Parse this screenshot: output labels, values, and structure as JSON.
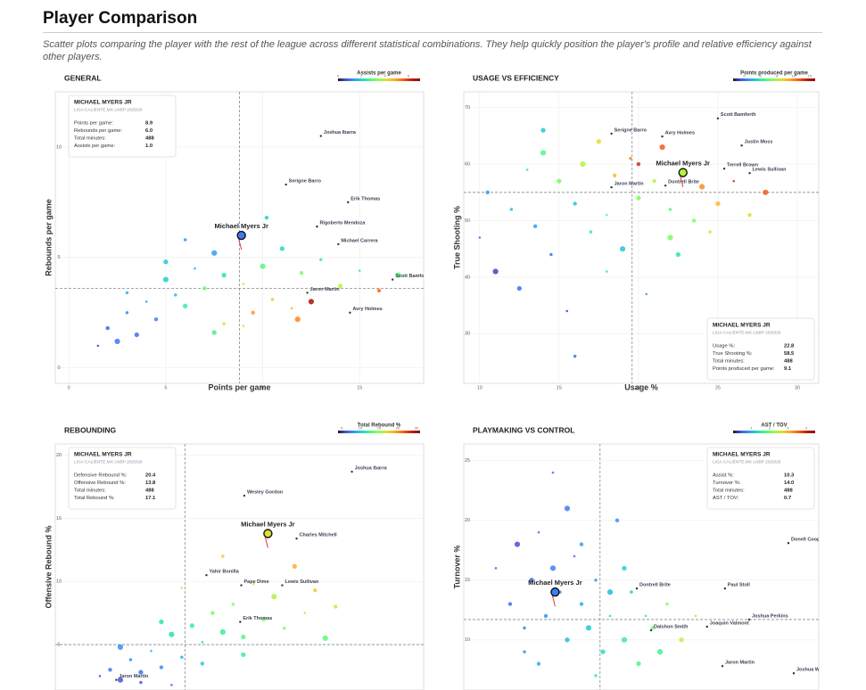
{
  "header": {
    "title": "Player Comparison",
    "subtitle": "Scatter plots comparing the player with the rest of the league across different statistical combinations. They help quickly position the player's profile and relative efficiency against other players."
  },
  "chart_data": [
    {
      "type": "scatter",
      "title": "GENERAL",
      "x_label": "Points per game",
      "y_label": "Rebounds per game",
      "xlim": [
        -0.7,
        18.3
      ],
      "ylim": [
        -0.7,
        12.5
      ],
      "xticks": [
        0,
        5,
        10,
        15
      ],
      "yticks": [
        0,
        5,
        10
      ],
      "grid": true,
      "x_median": 8.8,
      "y_median": 3.6,
      "colorbar": {
        "title": "Assists per game",
        "lim": [
          0,
          7
        ],
        "ticks": [
          0,
          2,
          4,
          6
        ]
      },
      "points": {
        "x": [
          1.5,
          2,
          2.5,
          3,
          3.5,
          4,
          4.5,
          5,
          5.5,
          6,
          6.5,
          7,
          7.5,
          8,
          8,
          9,
          9.5,
          10,
          10.5,
          11,
          11.5,
          12,
          12.5,
          13,
          14,
          15,
          16,
          17,
          6,
          7.5,
          9,
          10.2,
          11.8,
          3,
          5
        ],
        "y": [
          1.0,
          1.8,
          1.2,
          2.5,
          1.5,
          3.0,
          2.2,
          4.0,
          3.3,
          2.8,
          4.5,
          3.6,
          5.2,
          2.0,
          4.2,
          3.8,
          2.5,
          4.6,
          3.1,
          5.4,
          2.7,
          4.3,
          3.0,
          4.9,
          3.7,
          4.4,
          3.5,
          4.2,
          5.8,
          1.6,
          1.9,
          6.8,
          2.2,
          3.4,
          4.8
        ],
        "c": [
          0.5,
          0.8,
          1,
          1.2,
          0.9,
          1.5,
          1.1,
          2,
          1.8,
          2.5,
          1.6,
          3,
          1.4,
          4,
          2.2,
          3.5,
          5,
          2.8,
          4.5,
          2.1,
          4.8,
          3.2,
          6.5,
          2.5,
          3.8,
          2.4,
          5.5,
          3,
          1.3,
          2.6,
          4.2,
          2,
          5.2,
          1.7,
          1.9
        ]
      },
      "labeled": [
        {
          "name": "Joshua Ibarra",
          "x": 13.0,
          "y": 10.5
        },
        {
          "name": "Serigne Barro",
          "x": 11.2,
          "y": 8.3
        },
        {
          "name": "Erik Thomas",
          "x": 14.4,
          "y": 7.5
        },
        {
          "name": "Rigoberto Mendoza",
          "x": 12.8,
          "y": 6.4
        },
        {
          "name": "Michael Carrera",
          "x": 13.9,
          "y": 5.6
        },
        {
          "name": "Scott Bamfor",
          "x": 16.7,
          "y": 4.0
        },
        {
          "name": "Jaron Martin",
          "x": 12.3,
          "y": 3.4
        },
        {
          "name": "Avry Holmes",
          "x": 14.5,
          "y": 2.5
        }
      ],
      "player": {
        "name": "Michael Myers Jr",
        "x": 8.9,
        "y": 6.0,
        "c": 1.0
      },
      "info": {
        "corner": "top-left",
        "heading": "MICHAEL MYERS JR",
        "league": "LIGA CALIENTE.MX LNBP 2025/26",
        "rows": [
          [
            "Points per game:",
            "8.9"
          ],
          [
            "Rebounds per game:",
            "6.0"
          ],
          [
            "Total minutes:",
            "488"
          ],
          [
            "Assists per game:",
            "1.0"
          ]
        ]
      }
    },
    {
      "type": "scatter",
      "title": "USAGE VS EFFICIENCY",
      "x_label": "Usage %",
      "y_label": "True Shooting %",
      "xlim": [
        9.0,
        31.35
      ],
      "ylim": [
        21.2,
        72.8
      ],
      "xticks": [
        10,
        15,
        20,
        25,
        30
      ],
      "yticks": [
        30,
        40,
        50,
        60,
        70
      ],
      "grid": true,
      "x_median": 19.6,
      "y_median": 55,
      "colorbar": {
        "title": "Points produced per game",
        "lim": [
          1,
          16
        ],
        "ticks": [
          3,
          6,
          9,
          12,
          15
        ]
      },
      "points": {
        "x": [
          10,
          10.5,
          11,
          12,
          12.5,
          13,
          13.5,
          14,
          14.5,
          15,
          15.5,
          16,
          16.5,
          17,
          17.5,
          18,
          18.5,
          19,
          19.5,
          20,
          20.5,
          21,
          21.5,
          22,
          22.5,
          23,
          23.5,
          24,
          24.5,
          25,
          26,
          27,
          28,
          16,
          14,
          18,
          20,
          22
        ],
        "y": [
          47,
          55,
          41,
          52,
          38,
          59,
          49,
          62,
          44,
          57,
          34,
          53,
          60,
          48,
          64,
          51,
          58,
          45,
          61,
          54,
          37,
          57,
          63,
          52,
          44,
          59,
          50,
          56,
          48,
          53,
          57,
          51,
          55,
          26,
          66,
          41,
          60,
          47
        ],
        "c": [
          3,
          4,
          2,
          5,
          3,
          6,
          4,
          7,
          3,
          8,
          2,
          5,
          9,
          6,
          10,
          7,
          11,
          5,
          12,
          8,
          4,
          9,
          13,
          7,
          6,
          10,
          8,
          12,
          9,
          11,
          14,
          10,
          13,
          3,
          5,
          6,
          14,
          8
        ]
      },
      "labeled": [
        {
          "name": "Scott Bamforth",
          "x": 25.0,
          "y": 68.1
        },
        {
          "name": "Serigne Barro",
          "x": 18.3,
          "y": 65.4
        },
        {
          "name": "Avry Holmes",
          "x": 21.5,
          "y": 64.9
        },
        {
          "name": "Justin Moss",
          "x": 26.5,
          "y": 63.3
        },
        {
          "name": "Terrell Brown",
          "x": 25.4,
          "y": 59.2
        },
        {
          "name": "Lewis Sullivan",
          "x": 27.0,
          "y": 58.4
        },
        {
          "name": "Dontrell Brite",
          "x": 21.7,
          "y": 56.2
        },
        {
          "name": "Jaron Martin",
          "x": 18.3,
          "y": 55.9
        }
      ],
      "player": {
        "name": "Michael Myers Jr",
        "x": 22.8,
        "y": 58.5,
        "c": 9.1
      },
      "info": {
        "corner": "bottom-right",
        "heading": "MICHAEL MYERS JR",
        "league": "LIGA CALIENTE.MX LNBP 2025/26",
        "rows": [
          [
            "Usage %:",
            "22.8"
          ],
          [
            "True Shooting %:",
            "58.5"
          ],
          [
            "Total minutes:",
            "488"
          ],
          [
            "Points produced per game:",
            "9.1"
          ]
        ]
      }
    },
    {
      "type": "scatter",
      "title": "REBOUNDING",
      "y_label": "Offensive Rebound %",
      "xlim": [
        -0.35,
        35.6
      ],
      "ylim": [
        1.4,
        20.9
      ],
      "yticks": [
        5,
        10,
        15,
        20
      ],
      "grid": true,
      "x_median": 12.3,
      "y_median": 5.0,
      "colorbar": {
        "title": "Total Rebound %",
        "lim": [
          4,
          26
        ],
        "ticks": [
          5,
          10,
          15,
          20,
          25
        ]
      },
      "points": {
        "x": [
          4,
          5,
          6,
          7,
          8,
          9,
          10,
          11,
          12,
          13,
          14,
          15,
          16,
          17,
          18,
          19,
          20,
          21,
          22,
          23,
          24,
          25,
          26,
          8,
          10,
          12,
          14,
          6,
          16,
          18,
          11,
          27
        ],
        "y": [
          2.5,
          3.0,
          2.2,
          3.8,
          2.8,
          4.5,
          3.2,
          5.8,
          4.0,
          6.5,
          5.2,
          7.5,
          6.0,
          8.2,
          5.6,
          9.8,
          7.0,
          8.8,
          6.3,
          11.2,
          7.5,
          9.3,
          5.5,
          2.0,
          6.8,
          9.5,
          3.5,
          4.8,
          12.0,
          4.2,
          1.8,
          8.0
        ],
        "c": [
          6,
          7,
          6,
          8,
          7,
          9,
          8,
          11,
          9,
          12,
          11,
          14,
          12,
          15,
          13,
          17,
          14,
          16,
          14,
          19,
          15,
          18,
          13,
          6,
          11,
          15,
          10,
          8,
          18,
          12,
          7,
          16
        ]
      },
      "labeled": [
        {
          "name": "Joshua Ibarra",
          "x": 28.6,
          "y": 18.7
        },
        {
          "name": "Wesley Gordon",
          "x": 18.1,
          "y": 16.8
        },
        {
          "name": "Charles Mitchell",
          "x": 23.2,
          "y": 13.4
        },
        {
          "name": "Yahir Bonilla",
          "x": 14.4,
          "y": 10.5
        },
        {
          "name": "Pape Dime",
          "x": 17.8,
          "y": 9.7
        },
        {
          "name": "Lewis Sullivan",
          "x": 21.8,
          "y": 9.7
        },
        {
          "name": "Erik Thomas",
          "x": 17.7,
          "y": 6.8
        },
        {
          "name": "Jaron Martin",
          "x": 5.6,
          "y": 2.2
        }
      ],
      "player": {
        "name": "Michael Myers Jr",
        "x": 20.4,
        "y": 13.8,
        "c": 17.1
      },
      "info": {
        "corner": "top-left",
        "heading": "MICHAEL MYERS JR",
        "league": "LIGA CALIENTE.MX LNBP 2025/26",
        "rows": [
          [
            "Defensive Rebound %:",
            "20.4"
          ],
          [
            "Offensive Rebound %:",
            "13.8"
          ],
          [
            "Total minutes:",
            "488"
          ],
          [
            "Total Rebound %:",
            "17.1"
          ]
        ]
      }
    },
    {
      "type": "scatter",
      "title": "PLAYMAKING VS CONTROL",
      "y_label": "Turnover %",
      "xlim": [
        -2.5,
        47.25
      ],
      "ylim": [
        5.8,
        26.4
      ],
      "yticks": [
        10,
        15,
        20,
        25
      ],
      "grid": true,
      "x_median": 16.6,
      "y_median": 11.7,
      "colorbar": {
        "title": "AST / TOV",
        "lim": [
          0,
          4.5
        ],
        "ticks": [
          1,
          2,
          3,
          4
        ]
      },
      "points": {
        "x": [
          2,
          4,
          5,
          6,
          7,
          8,
          9,
          10,
          11,
          12,
          13,
          14,
          15,
          16,
          17,
          18,
          19,
          20,
          21,
          22,
          23,
          24,
          25,
          26,
          28,
          30,
          8,
          12,
          16,
          20,
          10,
          14,
          18,
          6
        ],
        "y": [
          16,
          13,
          18,
          11,
          15,
          19,
          12,
          16,
          14,
          10,
          17,
          13,
          11,
          15,
          9,
          12,
          20,
          10,
          14,
          8,
          12,
          11,
          9,
          13,
          10,
          12,
          8,
          21,
          7,
          16,
          24,
          18,
          14,
          9
        ],
        "c": [
          0.5,
          0.6,
          0.4,
          0.7,
          0.5,
          0.6,
          0.8,
          0.7,
          0.9,
          1.1,
          0.6,
          1,
          1.2,
          0.9,
          1.4,
          1.3,
          0.8,
          1.6,
          1.2,
          1.8,
          1.5,
          2,
          1.7,
          2.2,
          2.5,
          2.8,
          1,
          0.7,
          1.6,
          1.3,
          0.6,
          0.9,
          1.1,
          0.8
        ]
      },
      "labeled": [
        {
          "name": "Donell Coop",
          "x": 43.0,
          "y": 18.1
        },
        {
          "name": "Paul Stoll",
          "x": 34.1,
          "y": 14.3
        },
        {
          "name": "Dontrell Brite",
          "x": 21.75,
          "y": 14.3
        },
        {
          "name": "Joshua Perkins",
          "x": 37.5,
          "y": 11.7
        },
        {
          "name": "Joaquin Valmont",
          "x": 31.6,
          "y": 11.1
        },
        {
          "name": "Dalshon Smith",
          "x": 23.75,
          "y": 10.8
        },
        {
          "name": "Jaron Martin",
          "x": 33.75,
          "y": 7.8
        },
        {
          "name": "Joshua Wa",
          "x": 43.75,
          "y": 7.2
        }
      ],
      "player": {
        "name": "Michael Myers Jr",
        "x": 10.3,
        "y": 14.0,
        "c": 0.7
      },
      "info": {
        "corner": "top-right",
        "heading": "MICHAEL MYERS JR",
        "league": "LIGA CALIENTE.MX LNBP 2025/26",
        "rows": [
          [
            "Assist %:",
            "10.3"
          ],
          [
            "Turnover %:",
            "14.0"
          ],
          [
            "Total minutes:",
            "488"
          ],
          [
            "AST / TOV:",
            "0.7"
          ]
        ]
      }
    }
  ]
}
